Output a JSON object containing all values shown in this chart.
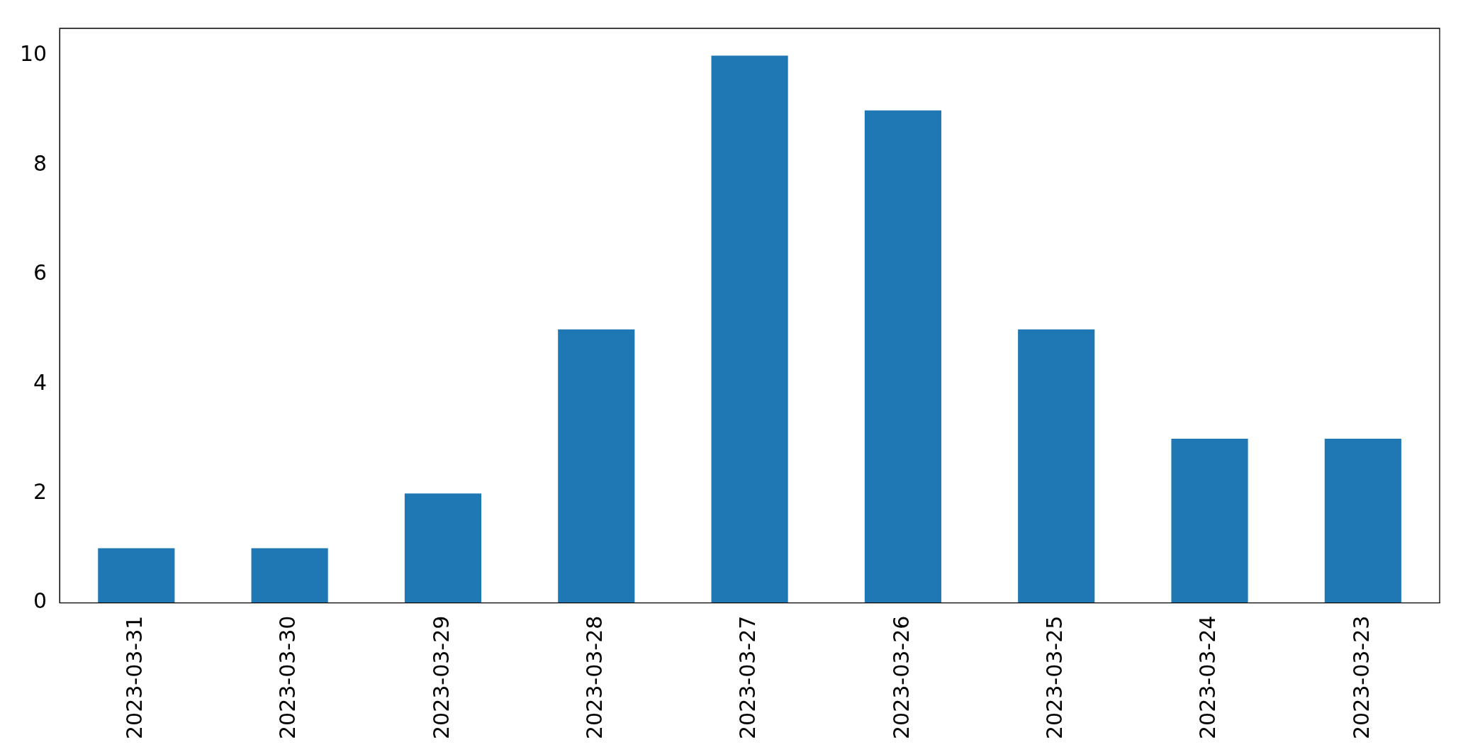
{
  "chart_data": {
    "type": "bar",
    "categories": [
      "2023-03-31",
      "2023-03-30",
      "2023-03-29",
      "2023-03-28",
      "2023-03-27",
      "2023-03-26",
      "2023-03-25",
      "2023-03-24",
      "2023-03-23"
    ],
    "values": [
      1,
      1,
      2,
      5,
      10,
      9,
      5,
      3,
      3
    ],
    "color": "#1f77b4",
    "ylim": [
      0,
      10.5
    ],
    "yticks": [
      0,
      2,
      4,
      6,
      8,
      10
    ],
    "grid": false,
    "legend": false
  }
}
